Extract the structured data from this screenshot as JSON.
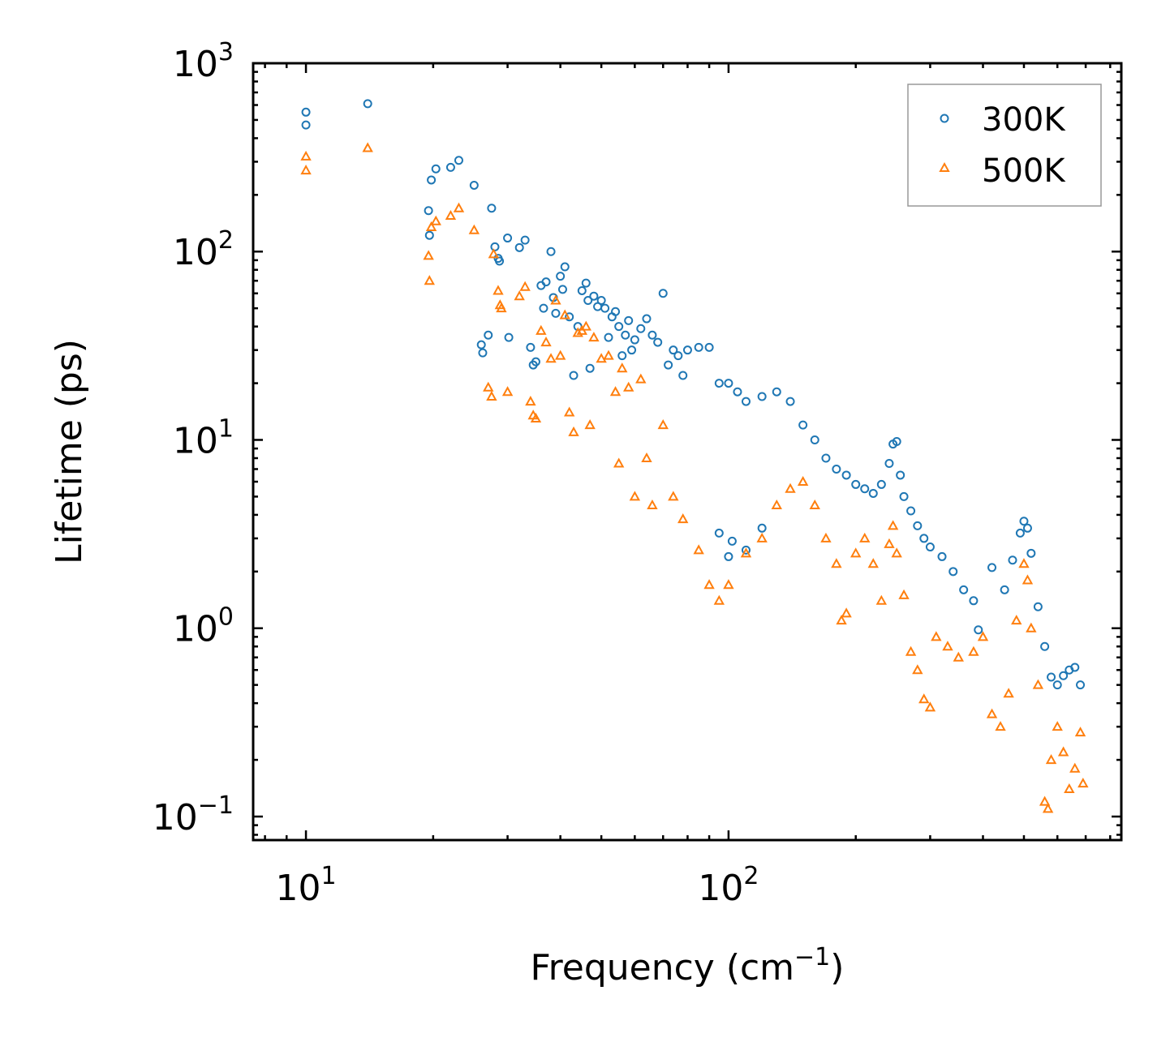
{
  "chart_data": {
    "type": "scatter",
    "title": "",
    "xlabel": "Frequency (cm",
    "xlabel_sup": "−1",
    "xlabel_suffix": ")",
    "ylabel": "Lifetime (ps)",
    "xscale": "log",
    "yscale": "log",
    "xlim": [
      7.5,
      850
    ],
    "ylim": [
      0.075,
      1000
    ],
    "grid": false,
    "legend_position": "top-right",
    "x_ticks": [
      {
        "value": 10,
        "base": "10",
        "exp": "1"
      },
      {
        "value": 100,
        "base": "10",
        "exp": "2"
      }
    ],
    "y_ticks": [
      {
        "value": 0.1,
        "base": "10",
        "exp": "−1"
      },
      {
        "value": 1,
        "base": "10",
        "exp": "0"
      },
      {
        "value": 10,
        "base": "10",
        "exp": "1"
      },
      {
        "value": 100,
        "base": "10",
        "exp": "2"
      },
      {
        "value": 1000,
        "base": "10",
        "exp": "3"
      }
    ],
    "series": [
      {
        "name": "300K",
        "marker": "circle",
        "color": "#1f77b4",
        "points": [
          [
            10.0,
            550
          ],
          [
            10.0,
            470
          ],
          [
            14.0,
            610
          ],
          [
            19.5,
            165
          ],
          [
            19.6,
            122
          ],
          [
            19.8,
            240
          ],
          [
            20.3,
            275
          ],
          [
            22.0,
            280
          ],
          [
            23.0,
            305
          ],
          [
            25.0,
            225
          ],
          [
            26.0,
            32
          ],
          [
            26.2,
            29
          ],
          [
            27.0,
            36
          ],
          [
            27.5,
            170
          ],
          [
            28.0,
            106
          ],
          [
            28.5,
            92
          ],
          [
            28.7,
            89
          ],
          [
            30.0,
            118
          ],
          [
            30.2,
            35
          ],
          [
            32.0,
            105
          ],
          [
            33.0,
            115
          ],
          [
            34.0,
            31
          ],
          [
            34.5,
            25
          ],
          [
            35.0,
            26
          ],
          [
            36.0,
            66
          ],
          [
            36.5,
            50
          ],
          [
            37.0,
            69
          ],
          [
            38.0,
            100
          ],
          [
            38.5,
            57
          ],
          [
            39.0,
            47
          ],
          [
            40.0,
            74
          ],
          [
            40.5,
            63
          ],
          [
            41.0,
            83
          ],
          [
            42.0,
            45
          ],
          [
            43.0,
            22
          ],
          [
            44.0,
            40
          ],
          [
            45.0,
            62
          ],
          [
            46.0,
            68
          ],
          [
            46.5,
            55
          ],
          [
            47.0,
            24
          ],
          [
            48.0,
            58
          ],
          [
            49.0,
            51
          ],
          [
            50.0,
            55
          ],
          [
            51.0,
            50
          ],
          [
            52.0,
            35
          ],
          [
            53.0,
            45
          ],
          [
            54.0,
            48
          ],
          [
            55.0,
            40
          ],
          [
            56.0,
            28
          ],
          [
            57.0,
            36
          ],
          [
            58.0,
            43
          ],
          [
            59.0,
            30
          ],
          [
            60.0,
            34
          ],
          [
            62.0,
            39
          ],
          [
            64.0,
            44
          ],
          [
            66.0,
            36
          ],
          [
            68.0,
            33
          ],
          [
            70.0,
            60
          ],
          [
            72.0,
            25
          ],
          [
            74.0,
            30
          ],
          [
            76.0,
            28
          ],
          [
            78.0,
            22
          ],
          [
            80.0,
            30
          ],
          [
            85.0,
            31
          ],
          [
            90.0,
            31
          ],
          [
            95.0,
            20
          ],
          [
            100.0,
            20
          ],
          [
            105.0,
            18
          ],
          [
            110.0,
            16
          ],
          [
            120.0,
            17
          ],
          [
            130.0,
            18
          ],
          [
            140.0,
            16
          ],
          [
            150.0,
            12
          ],
          [
            160.0,
            10
          ],
          [
            170.0,
            8
          ],
          [
            180.0,
            7
          ],
          [
            190.0,
            6.5
          ],
          [
            200.0,
            5.8
          ],
          [
            210.0,
            5.5
          ],
          [
            220.0,
            5.2
          ],
          [
            230.0,
            5.8
          ],
          [
            240.0,
            7.5
          ],
          [
            245.0,
            9.5
          ],
          [
            250.0,
            9.8
          ],
          [
            255.0,
            6.5
          ],
          [
            260.0,
            5.0
          ],
          [
            270.0,
            4.2
          ],
          [
            280.0,
            3.5
          ],
          [
            290.0,
            3.0
          ],
          [
            300.0,
            2.7
          ],
          [
            320.0,
            2.4
          ],
          [
            340.0,
            2.0
          ],
          [
            360.0,
            1.6
          ],
          [
            380.0,
            1.4
          ],
          [
            390.0,
            0.98
          ],
          [
            420.0,
            2.1
          ],
          [
            450.0,
            1.6
          ],
          [
            470.0,
            2.3
          ],
          [
            490.0,
            3.2
          ],
          [
            500.0,
            3.7
          ],
          [
            510.0,
            3.4
          ],
          [
            520.0,
            2.5
          ],
          [
            540.0,
            1.3
          ],
          [
            560.0,
            0.8
          ],
          [
            580.0,
            0.55
          ],
          [
            600.0,
            0.5
          ],
          [
            620.0,
            0.56
          ],
          [
            640.0,
            0.6
          ],
          [
            660.0,
            0.62
          ],
          [
            680.0,
            0.5
          ],
          [
            100.0,
            2.4
          ],
          [
            110.0,
            2.6
          ],
          [
            95.0,
            3.2
          ],
          [
            120.0,
            3.4
          ],
          [
            102.0,
            2.9
          ]
        ]
      },
      {
        "name": "500K",
        "marker": "triangle",
        "color": "#ff7f0e",
        "points": [
          [
            10.0,
            320
          ],
          [
            10.0,
            270
          ],
          [
            14.0,
            355
          ],
          [
            19.5,
            95
          ],
          [
            19.6,
            70
          ],
          [
            19.8,
            135
          ],
          [
            20.3,
            145
          ],
          [
            22.0,
            155
          ],
          [
            23.0,
            170
          ],
          [
            25.0,
            130
          ],
          [
            27.0,
            19
          ],
          [
            27.5,
            17
          ],
          [
            27.8,
            97
          ],
          [
            28.5,
            62
          ],
          [
            28.8,
            52
          ],
          [
            29.0,
            50
          ],
          [
            30.0,
            18
          ],
          [
            32.0,
            58
          ],
          [
            33.0,
            65
          ],
          [
            34.0,
            16
          ],
          [
            34.5,
            13.5
          ],
          [
            35.0,
            13
          ],
          [
            36.0,
            38
          ],
          [
            37.0,
            33
          ],
          [
            38.0,
            27
          ],
          [
            39.0,
            55
          ],
          [
            40.0,
            28
          ],
          [
            41.0,
            46
          ],
          [
            42.0,
            14
          ],
          [
            43.0,
            11
          ],
          [
            44.0,
            37
          ],
          [
            45.0,
            38
          ],
          [
            46.0,
            40
          ],
          [
            47.0,
            12
          ],
          [
            48.0,
            35
          ],
          [
            50.0,
            27
          ],
          [
            52.0,
            28
          ],
          [
            54.0,
            18
          ],
          [
            55.0,
            7.5
          ],
          [
            56.0,
            24
          ],
          [
            58.0,
            19
          ],
          [
            60.0,
            5
          ],
          [
            62.0,
            21
          ],
          [
            64.0,
            8
          ],
          [
            66.0,
            4.5
          ],
          [
            70.0,
            12
          ],
          [
            74.0,
            5
          ],
          [
            78.0,
            3.8
          ],
          [
            85.0,
            2.6
          ],
          [
            90.0,
            1.7
          ],
          [
            95.0,
            1.4
          ],
          [
            100.0,
            1.7
          ],
          [
            110.0,
            2.5
          ],
          [
            120.0,
            3.0
          ],
          [
            130.0,
            4.5
          ],
          [
            140.0,
            5.5
          ],
          [
            150.0,
            6
          ],
          [
            160.0,
            4.5
          ],
          [
            170.0,
            3
          ],
          [
            180.0,
            2.2
          ],
          [
            185.0,
            1.1
          ],
          [
            190.0,
            1.2
          ],
          [
            200.0,
            2.5
          ],
          [
            210.0,
            3.0
          ],
          [
            220.0,
            2.2
          ],
          [
            230.0,
            1.4
          ],
          [
            240.0,
            2.8
          ],
          [
            245.0,
            3.5
          ],
          [
            250.0,
            2.5
          ],
          [
            260.0,
            1.5
          ],
          [
            270.0,
            0.75
          ],
          [
            280.0,
            0.6
          ],
          [
            290.0,
            0.42
          ],
          [
            300.0,
            0.38
          ],
          [
            310.0,
            0.9
          ],
          [
            330.0,
            0.8
          ],
          [
            350.0,
            0.7
          ],
          [
            380.0,
            0.75
          ],
          [
            400.0,
            0.9
          ],
          [
            420.0,
            0.35
          ],
          [
            440.0,
            0.3
          ],
          [
            460.0,
            0.45
          ],
          [
            480.0,
            1.1
          ],
          [
            500.0,
            2.2
          ],
          [
            510.0,
            1.8
          ],
          [
            520.0,
            1.0
          ],
          [
            540.0,
            0.5
          ],
          [
            560.0,
            0.12
          ],
          [
            570.0,
            0.11
          ],
          [
            580.0,
            0.2
          ],
          [
            600.0,
            0.3
          ],
          [
            620.0,
            0.22
          ],
          [
            640.0,
            0.14
          ],
          [
            660.0,
            0.18
          ],
          [
            680.0,
            0.28
          ],
          [
            690.0,
            0.15
          ]
        ]
      }
    ]
  }
}
